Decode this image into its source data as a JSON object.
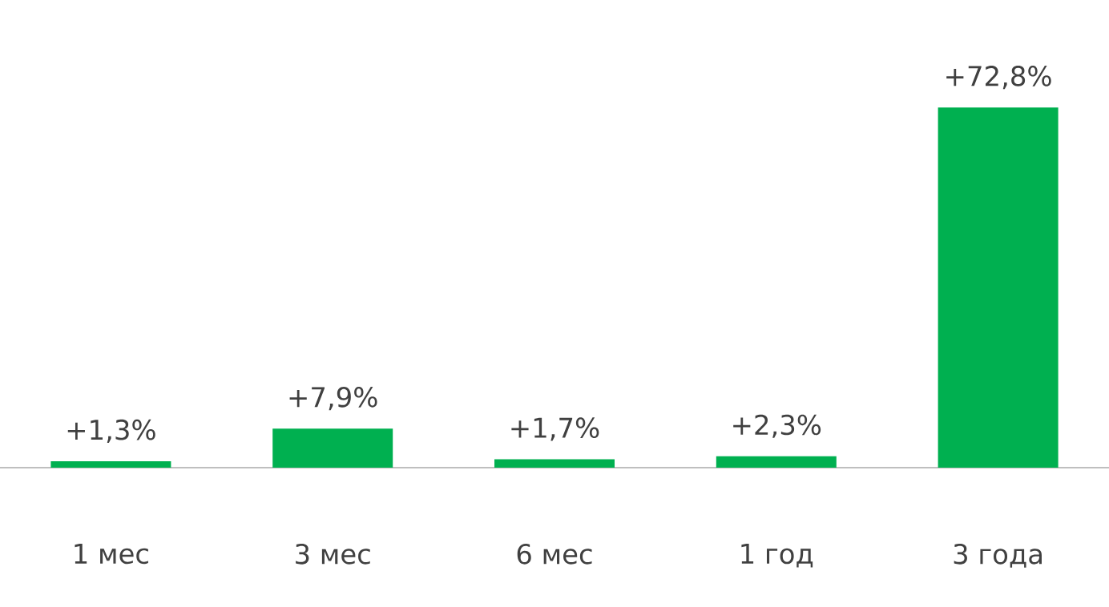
{
  "chart_data": {
    "type": "bar",
    "categories": [
      "1 мес",
      "3 мес",
      "6 мес",
      "1 год",
      "3 года"
    ],
    "values": [
      1.3,
      7.9,
      1.7,
      2.3,
      72.8
    ],
    "value_labels": [
      "+1,3%",
      "+7,9%",
      "+1,7%",
      "+2,3%",
      "+72,8%"
    ],
    "color": "#00b050"
  }
}
